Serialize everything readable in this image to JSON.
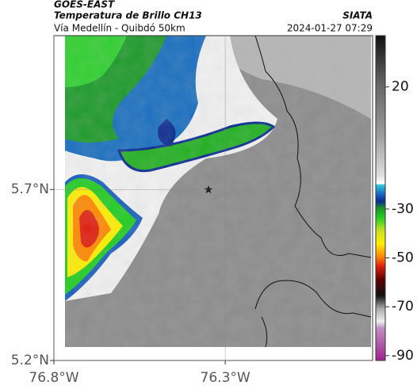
{
  "header": {
    "product": "GOES-EAST",
    "title": "Temperatura de Brillo CH13",
    "subtitle": "Vía Medellín - Quibdó 50km",
    "source": "SIATA",
    "datetime": "2024-01-27 07:29"
  },
  "map": {
    "xlim": [
      -76.8,
      -75.87
    ],
    "ylim": [
      5.2,
      6.15
    ],
    "xticks": [
      {
        "value": -76.8,
        "label": "76.8°W"
      },
      {
        "value": -76.3,
        "label": "76.3°W"
      }
    ],
    "yticks": [
      {
        "value": 5.2,
        "label": "5.2°N"
      },
      {
        "value": 5.7,
        "label": "5.7°N"
      }
    ],
    "grid": true
  },
  "colorbar": {
    "lim": [
      -92,
      41
    ],
    "ticks": [
      20,
      -30,
      -50,
      -70,
      -90
    ]
  }
}
